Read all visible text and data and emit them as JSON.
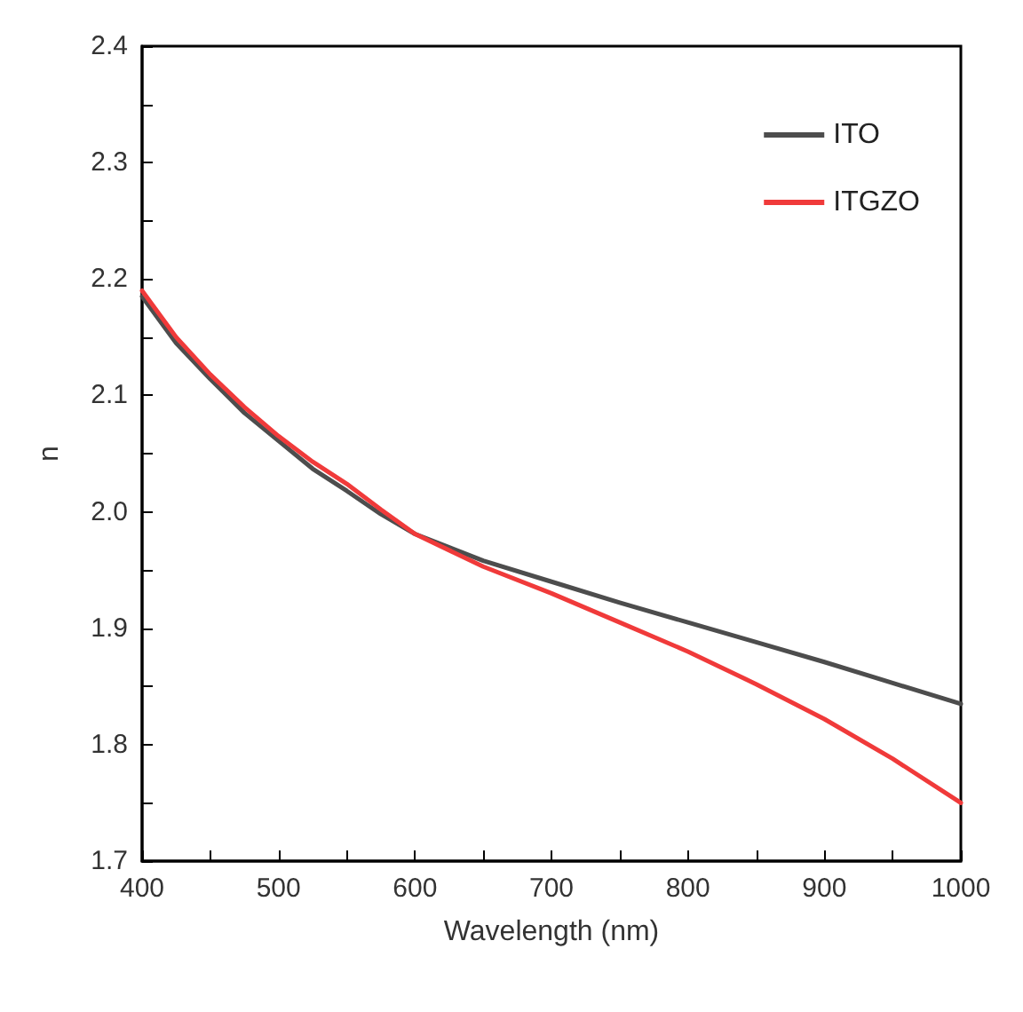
{
  "chart_data": {
    "type": "line",
    "xlabel": "Wavelength (nm)",
    "ylabel": "n",
    "x": [
      400,
      425,
      450,
      475,
      500,
      525,
      550,
      575,
      600,
      650,
      700,
      750,
      800,
      850,
      900,
      950,
      1000
    ],
    "series": [
      {
        "name": "ITO",
        "color": "#4d4d4d",
        "values": [
          2.185,
          2.145,
          2.114,
          2.085,
          2.061,
          2.037,
          2.018,
          1.998,
          1.981,
          1.958,
          1.94,
          1.922,
          1.905,
          1.888,
          1.871,
          1.853,
          1.835
        ]
      },
      {
        "name": "ITGZO",
        "color": "#f03a3a",
        "values": [
          2.19,
          2.15,
          2.118,
          2.09,
          2.065,
          2.043,
          2.024,
          2.002,
          1.981,
          1.953,
          1.93,
          1.905,
          1.88,
          1.852,
          1.822,
          1.788,
          1.75
        ]
      }
    ],
    "xlim": [
      400,
      1000
    ],
    "xticks": [
      400,
      500,
      600,
      700,
      800,
      900,
      1000
    ],
    "ylim": [
      1.7,
      2.4
    ],
    "yticks": [
      1.7,
      1.8,
      1.9,
      {
        "value": 2,
        "label": "2.0"
      },
      2.1,
      2.2,
      2.3,
      2.4
    ],
    "grid": false,
    "legend": "top right",
    "marker": "none",
    "line_style": "solid"
  }
}
